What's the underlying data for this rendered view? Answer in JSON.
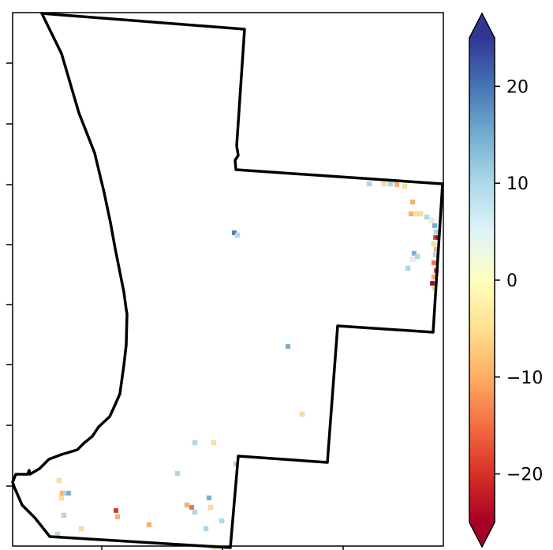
{
  "colorbar": {
    "colormap": "RdYlBu",
    "ticks": [
      {
        "value": 20,
        "label": "20"
      },
      {
        "value": 10,
        "label": "10"
      },
      {
        "value": 0,
        "label": "0"
      },
      {
        "value": -10,
        "label": "−10"
      },
      {
        "value": -20,
        "label": "−20"
      }
    ],
    "range": [
      -25,
      25
    ],
    "extend": "both",
    "stops": [
      "#a50026",
      "#d73027",
      "#f46d43",
      "#fdae61",
      "#fee090",
      "#ffffbf",
      "#e0f3f8",
      "#abd9e9",
      "#74add1",
      "#4575b4",
      "#313695"
    ]
  },
  "map": {
    "boundary_color": "#000000",
    "background": "#ffffff",
    "left_ticks": 8,
    "bottom_ticks": 3
  }
}
